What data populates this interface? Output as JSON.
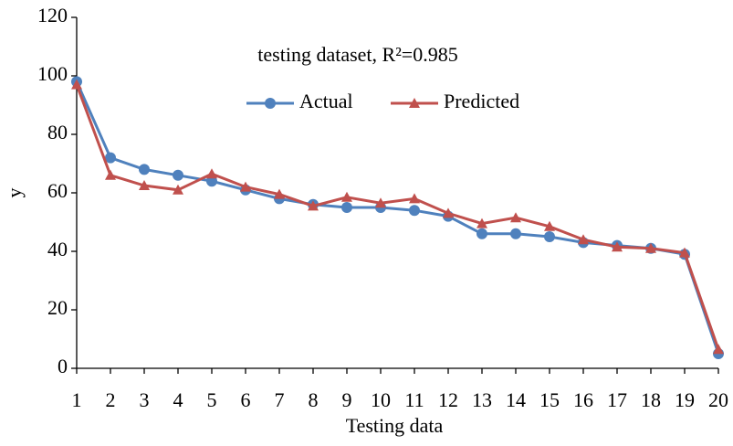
{
  "chart_data": {
    "type": "line",
    "title": "testing dataset, R²=0.985",
    "x_label": "Testing data",
    "y_label": "y",
    "x": [
      1,
      2,
      3,
      4,
      5,
      6,
      7,
      8,
      9,
      10,
      11,
      12,
      13,
      14,
      15,
      16,
      17,
      18,
      19,
      20
    ],
    "xlim": [
      1,
      20
    ],
    "xticks": [
      1,
      2,
      3,
      4,
      5,
      6,
      7,
      8,
      9,
      10,
      11,
      12,
      13,
      14,
      15,
      16,
      17,
      18,
      19,
      20
    ],
    "ylim": [
      0,
      120
    ],
    "yticks": [
      0,
      20,
      40,
      60,
      80,
      100,
      120
    ],
    "grid": false,
    "legend": "top",
    "series": [
      {
        "name": "Actual",
        "color": "#4f81bd",
        "marker": "circle",
        "values": [
          98,
          72,
          68,
          66,
          64,
          61,
          58,
          56,
          55,
          55,
          54,
          52,
          46,
          46,
          45,
          43,
          42,
          41,
          39,
          5
        ]
      },
      {
        "name": "Predicted",
        "color": "#c0504d",
        "marker": "triangle",
        "values": [
          97,
          66,
          62.5,
          61,
          66.5,
          62,
          59.5,
          55.5,
          58.5,
          56.5,
          58,
          53,
          49.5,
          51.5,
          48.5,
          44,
          41.5,
          41,
          39.5,
          6.5
        ]
      }
    ]
  }
}
